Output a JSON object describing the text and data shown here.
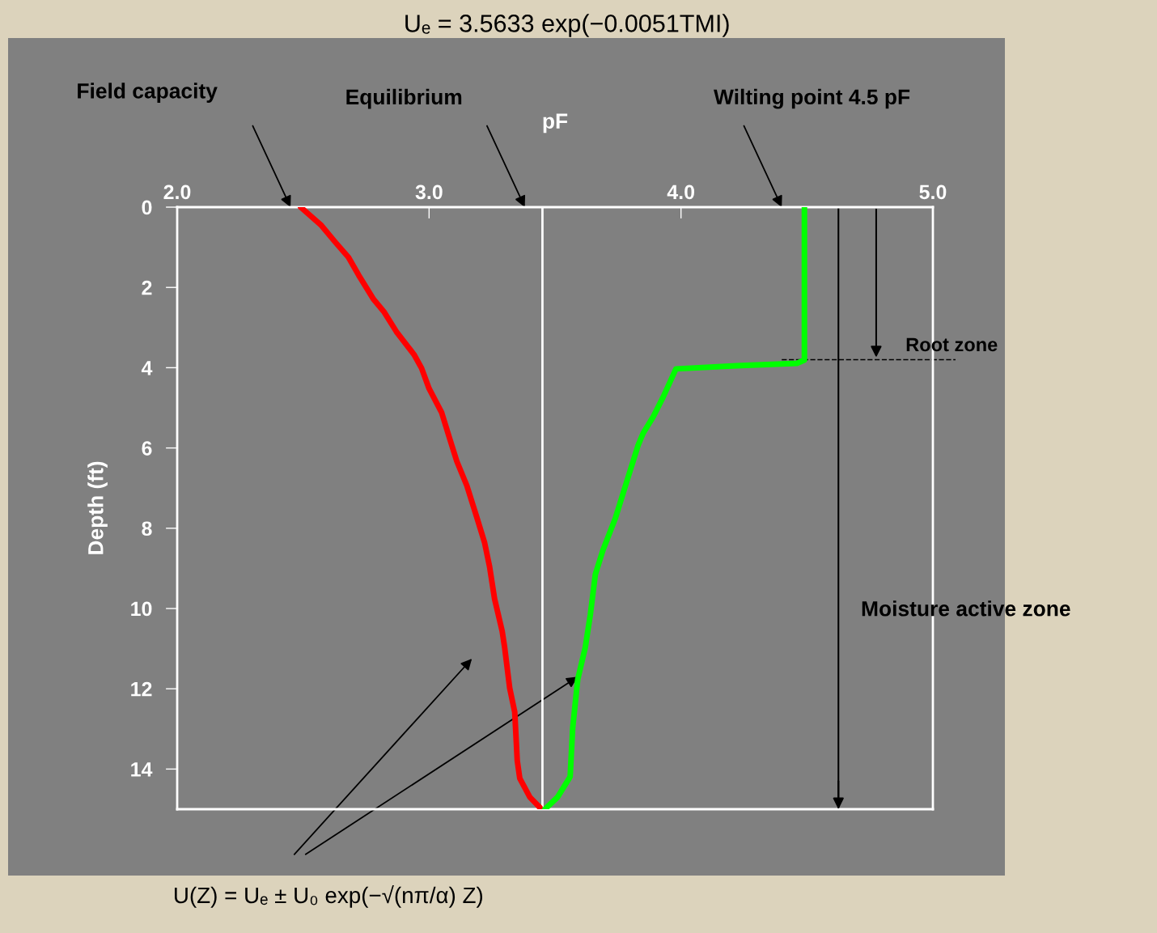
{
  "chart_data": {
    "type": "line",
    "title": "Uₑ = 3.5633 exp(−0.0051TMI)",
    "xlabel": "pF",
    "ylabel": "Depth (ft)",
    "xlim": [
      2.0,
      5.0
    ],
    "xticks": [
      {
        "value": 2.0,
        "label": "2.0"
      },
      {
        "value": 3.0,
        "label": "3.0"
      },
      {
        "value": 4.0,
        "label": "4.0"
      },
      {
        "value": 5.0,
        "label": "5.0"
      }
    ],
    "ylim": [
      15,
      0
    ],
    "yticks": [
      0,
      2,
      4,
      6,
      8,
      10,
      12,
      14
    ],
    "grid": false,
    "legend": false,
    "marker": "none",
    "line_style": "solid",
    "series": [
      {
        "color": "#ff0000",
        "x": [
          2.49,
          2.57,
          2.63,
          2.68,
          2.72,
          2.78,
          2.82,
          2.87,
          2.94,
          2.97,
          3.0,
          3.05,
          3.08,
          3.11,
          3.15,
          3.19,
          3.22,
          3.24,
          3.26,
          3.29,
          3.3,
          3.32,
          3.34,
          3.35,
          3.36,
          3.4,
          3.44
        ],
        "values": [
          0,
          0.44,
          0.89,
          1.25,
          1.69,
          2.3,
          2.6,
          3.1,
          3.67,
          4.01,
          4.52,
          5.12,
          5.73,
          6.33,
          6.94,
          7.74,
          8.35,
          8.95,
          9.76,
          10.56,
          10.97,
          11.98,
          12.58,
          13.79,
          14.23,
          14.7,
          14.96
        ]
      },
      {
        "color": "#00ff00",
        "x": [
          4.49,
          4.49,
          4.46,
          4.22,
          3.98,
          3.93,
          3.89,
          3.85,
          3.83,
          3.79,
          3.74,
          3.69,
          3.66,
          3.64,
          3.62,
          3.59,
          3.57,
          3.56,
          3.51,
          3.46
        ],
        "values": [
          0,
          3.81,
          3.89,
          3.95,
          4.03,
          4.72,
          5.22,
          5.63,
          5.93,
          6.73,
          7.74,
          8.55,
          9.15,
          10.16,
          10.97,
          11.77,
          12.98,
          14.19,
          14.7,
          15.0
        ]
      }
    ],
    "ref_lines": [
      {
        "axis": "x",
        "value": 3.45,
        "color": "#ffffff",
        "line_style": "solid"
      },
      {
        "axis": "y",
        "value": 3.8,
        "label": "Root zone",
        "color": "#000000",
        "line_style": "dashed"
      },
      {
        "axis": "x",
        "value": 4.625,
        "label": "Moisture active zone",
        "color": "#000000",
        "line_style": "solid"
      }
    ],
    "annotations": [
      "Field capacity",
      "Equilibrium",
      "Wilting point 4.5 pF",
      "U(Z) = Uₑ ± U₀ exp(−√(nπ/α) Z)"
    ]
  }
}
